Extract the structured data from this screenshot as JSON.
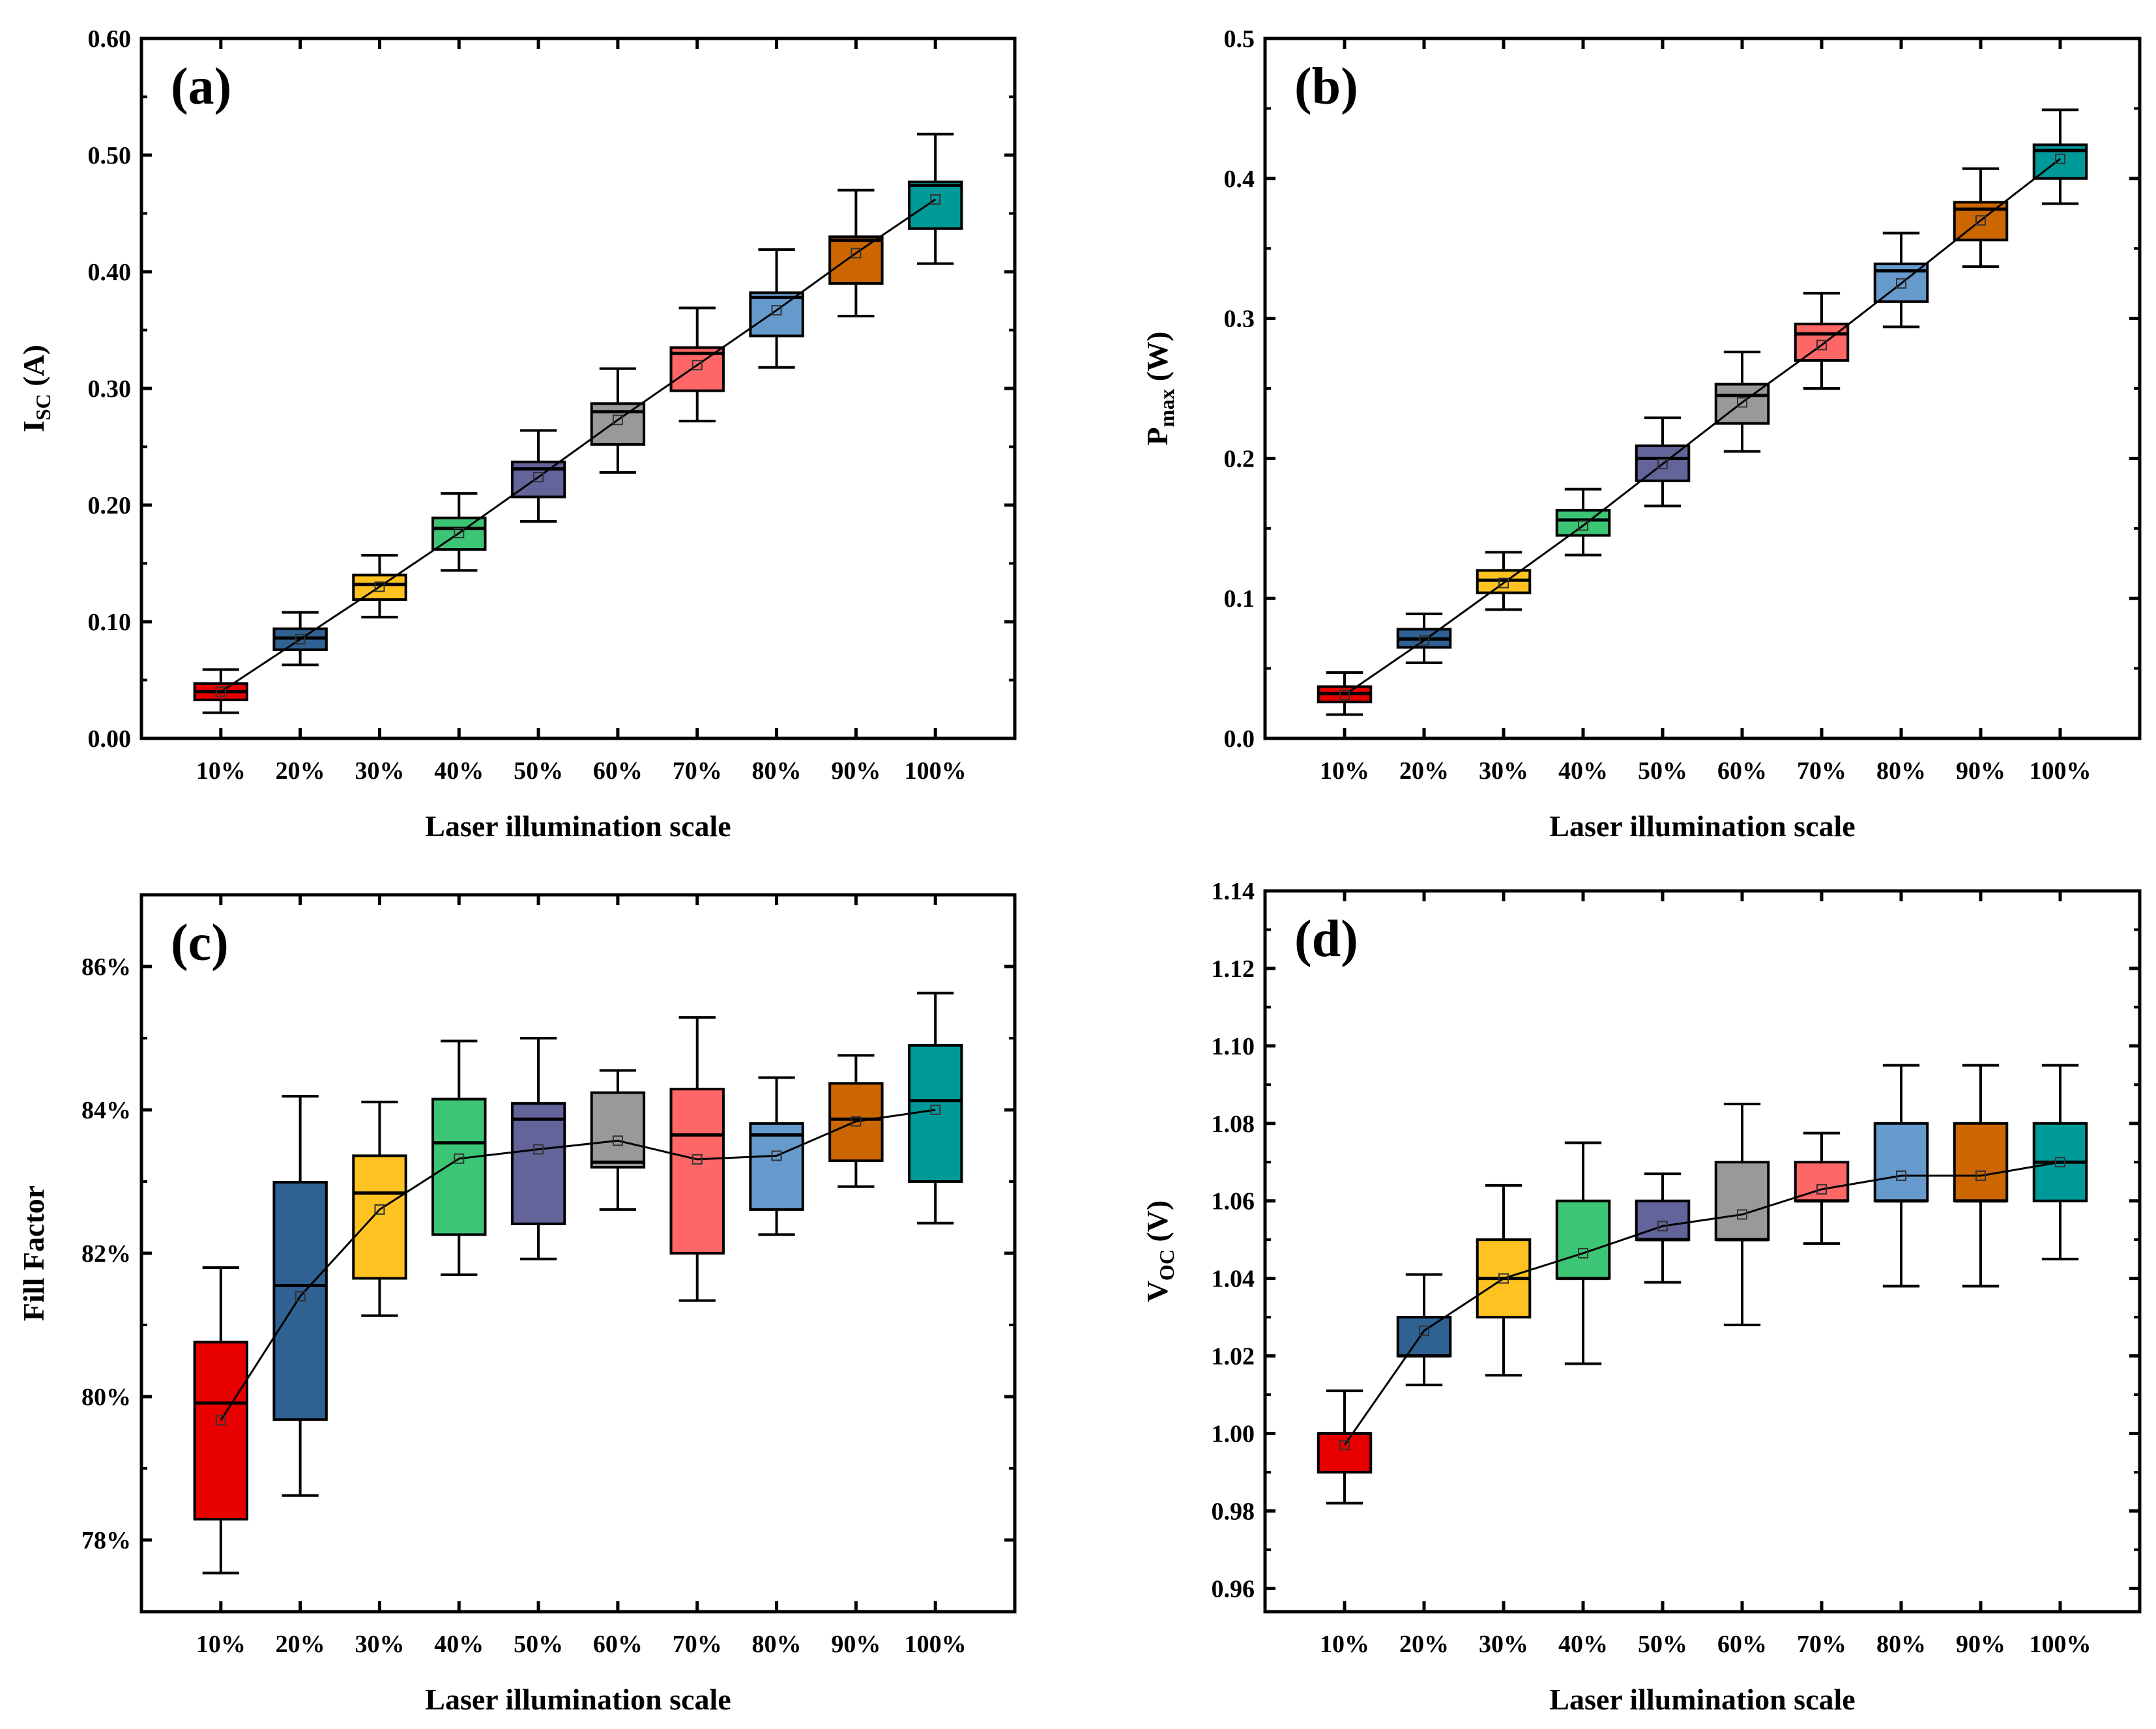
{
  "chart_data": [
    {
      "type": "box",
      "panel_label": "(a)",
      "ylabel": "I",
      "ylabel_sub": "SC",
      "ylabel_unit": " (A)",
      "xlabel": "Laser illumination scale",
      "categories": [
        "10%",
        "20%",
        "30%",
        "40%",
        "50%",
        "60%",
        "70%",
        "80%",
        "90%",
        "100%"
      ],
      "ylim": [
        0,
        0.6
      ],
      "yticks": [
        0,
        0.1,
        0.2,
        0.3,
        0.4,
        0.5,
        0.6
      ],
      "ytick_labels": [
        "0.00",
        "0.10",
        "0.20",
        "0.30",
        "0.40",
        "0.50",
        "0.60"
      ],
      "boxes": [
        {
          "min": 0.022,
          "q1": 0.033,
          "median": 0.04,
          "q3": 0.047,
          "max": 0.059,
          "mean": 0.04
        },
        {
          "min": 0.063,
          "q1": 0.076,
          "median": 0.086,
          "q3": 0.094,
          "max": 0.108,
          "mean": 0.085
        },
        {
          "min": 0.104,
          "q1": 0.119,
          "median": 0.132,
          "q3": 0.14,
          "max": 0.157,
          "mean": 0.13
        },
        {
          "min": 0.144,
          "q1": 0.162,
          "median": 0.18,
          "q3": 0.189,
          "max": 0.21,
          "mean": 0.176
        },
        {
          "min": 0.186,
          "q1": 0.207,
          "median": 0.231,
          "q3": 0.237,
          "max": 0.264,
          "mean": 0.224
        },
        {
          "min": 0.228,
          "q1": 0.252,
          "median": 0.28,
          "q3": 0.287,
          "max": 0.317,
          "mean": 0.273
        },
        {
          "min": 0.272,
          "q1": 0.298,
          "median": 0.33,
          "q3": 0.335,
          "max": 0.369,
          "mean": 0.32
        },
        {
          "min": 0.318,
          "q1": 0.345,
          "median": 0.378,
          "q3": 0.382,
          "max": 0.419,
          "mean": 0.367
        },
        {
          "min": 0.362,
          "q1": 0.39,
          "median": 0.427,
          "q3": 0.43,
          "max": 0.47,
          "mean": 0.416
        },
        {
          "min": 0.407,
          "q1": 0.437,
          "median": 0.474,
          "q3": 0.477,
          "max": 0.518,
          "mean": 0.462
        }
      ]
    },
    {
      "type": "box",
      "panel_label": "(b)",
      "ylabel": "P",
      "ylabel_sub": "max",
      "ylabel_unit": " (W)",
      "xlabel": "Laser illumination scale",
      "categories": [
        "10%",
        "20%",
        "30%",
        "40%",
        "50%",
        "60%",
        "70%",
        "80%",
        "90%",
        "100%"
      ],
      "ylim": [
        0,
        0.5
      ],
      "yticks": [
        0,
        0.1,
        0.2,
        0.3,
        0.4,
        0.5
      ],
      "ytick_labels": [
        "0.0",
        "0.1",
        "0.2",
        "0.3",
        "0.4",
        "0.5"
      ],
      "boxes": [
        {
          "min": 0.017,
          "q1": 0.026,
          "median": 0.032,
          "q3": 0.037,
          "max": 0.047,
          "mean": 0.031
        },
        {
          "min": 0.054,
          "q1": 0.065,
          "median": 0.071,
          "q3": 0.078,
          "max": 0.089,
          "mean": 0.07
        },
        {
          "min": 0.092,
          "q1": 0.104,
          "median": 0.113,
          "q3": 0.12,
          "max": 0.133,
          "mean": 0.111
        },
        {
          "min": 0.131,
          "q1": 0.145,
          "median": 0.156,
          "q3": 0.163,
          "max": 0.178,
          "mean": 0.152
        },
        {
          "min": 0.166,
          "q1": 0.184,
          "median": 0.2,
          "q3": 0.209,
          "max": 0.229,
          "mean": 0.196
        },
        {
          "min": 0.205,
          "q1": 0.225,
          "median": 0.245,
          "q3": 0.253,
          "max": 0.276,
          "mean": 0.24
        },
        {
          "min": 0.25,
          "q1": 0.27,
          "median": 0.289,
          "q3": 0.296,
          "max": 0.318,
          "mean": 0.281
        },
        {
          "min": 0.294,
          "q1": 0.312,
          "median": 0.334,
          "q3": 0.339,
          "max": 0.361,
          "mean": 0.325
        },
        {
          "min": 0.337,
          "q1": 0.356,
          "median": 0.378,
          "q3": 0.383,
          "max": 0.407,
          "mean": 0.37
        },
        {
          "min": 0.382,
          "q1": 0.4,
          "median": 0.42,
          "q3": 0.424,
          "max": 0.449,
          "mean": 0.414
        }
      ]
    },
    {
      "type": "box",
      "panel_label": "(c)",
      "ylabel": "Fill Factor",
      "ylabel_sub": "",
      "ylabel_unit": "",
      "xlabel": "Laser illumination scale",
      "categories": [
        "10%",
        "20%",
        "30%",
        "40%",
        "50%",
        "60%",
        "70%",
        "80%",
        "90%",
        "100%"
      ],
      "ylim": [
        77,
        87
      ],
      "yticks": [
        78,
        80,
        82,
        84,
        86
      ],
      "ytick_labels": [
        "78%",
        "80%",
        "82%",
        "84%",
        "86%"
      ],
      "boxes": [
        {
          "min": 77.54,
          "q1": 78.29,
          "median": 79.91,
          "q3": 80.76,
          "max": 81.8,
          "mean": 79.67
        },
        {
          "min": 78.62,
          "q1": 79.68,
          "median": 81.55,
          "q3": 82.99,
          "max": 84.19,
          "mean": 81.4
        },
        {
          "min": 81.13,
          "q1": 81.65,
          "median": 82.84,
          "q3": 83.36,
          "max": 84.11,
          "mean": 82.61
        },
        {
          "min": 81.7,
          "q1": 82.26,
          "median": 83.54,
          "q3": 84.15,
          "max": 84.96,
          "mean": 83.32
        },
        {
          "min": 81.92,
          "q1": 82.41,
          "median": 83.87,
          "q3": 84.09,
          "max": 85.0,
          "mean": 83.45
        },
        {
          "min": 82.61,
          "q1": 83.2,
          "median": 83.27,
          "q3": 84.24,
          "max": 84.55,
          "mean": 83.57
        },
        {
          "min": 81.34,
          "q1": 82.0,
          "median": 83.65,
          "q3": 84.29,
          "max": 85.29,
          "mean": 83.31
        },
        {
          "min": 82.26,
          "q1": 82.61,
          "median": 83.65,
          "q3": 83.81,
          "max": 84.45,
          "mean": 83.36
        },
        {
          "min": 82.93,
          "q1": 83.29,
          "median": 83.87,
          "q3": 84.37,
          "max": 84.76,
          "mean": 83.84
        },
        {
          "min": 82.42,
          "q1": 83.0,
          "median": 84.13,
          "q3": 84.9,
          "max": 85.63,
          "mean": 84.0
        }
      ]
    },
    {
      "type": "box",
      "panel_label": "(d)",
      "ylabel": "V",
      "ylabel_sub": "OC",
      "ylabel_unit": " (V)",
      "xlabel": "Laser illumination scale",
      "categories": [
        "10%",
        "20%",
        "30%",
        "40%",
        "50%",
        "60%",
        "70%",
        "80%",
        "90%",
        "100%"
      ],
      "ylim": [
        0.954,
        1.14
      ],
      "yticks": [
        0.96,
        0.98,
        1.0,
        1.02,
        1.04,
        1.06,
        1.08,
        1.1,
        1.12,
        1.14
      ],
      "ytick_labels": [
        "0.96",
        "0.98",
        "1.00",
        "1.02",
        "1.04",
        "1.06",
        "1.08",
        "1.10",
        "1.12",
        "1.14"
      ],
      "boxes": [
        {
          "min": 0.982,
          "q1": 0.99,
          "median": 1.0,
          "q3": 1.0,
          "max": 1.011,
          "mean": 0.997
        },
        {
          "min": 1.0125,
          "q1": 1.02,
          "median": 1.02,
          "q3": 1.03,
          "max": 1.041,
          "mean": 1.0265
        },
        {
          "min": 1.015,
          "q1": 1.03,
          "median": 1.04,
          "q3": 1.05,
          "max": 1.064,
          "mean": 1.04
        },
        {
          "min": 1.018,
          "q1": 1.04,
          "median": 1.04,
          "q3": 1.06,
          "max": 1.075,
          "mean": 1.0465
        },
        {
          "min": 1.039,
          "q1": 1.05,
          "median": 1.05,
          "q3": 1.06,
          "max": 1.067,
          "mean": 1.0535
        },
        {
          "min": 1.028,
          "q1": 1.05,
          "median": 1.05,
          "q3": 1.07,
          "max": 1.085,
          "mean": 1.0565
        },
        {
          "min": 1.049,
          "q1": 1.06,
          "median": 1.06,
          "q3": 1.07,
          "max": 1.0775,
          "mean": 1.063
        },
        {
          "min": 1.038,
          "q1": 1.06,
          "median": 1.06,
          "q3": 1.08,
          "max": 1.095,
          "mean": 1.0665
        },
        {
          "min": 1.038,
          "q1": 1.06,
          "median": 1.06,
          "q3": 1.08,
          "max": 1.095,
          "mean": 1.0665
        },
        {
          "min": 1.045,
          "q1": 1.06,
          "median": 1.07,
          "q3": 1.08,
          "max": 1.095,
          "mean": 1.07
        }
      ]
    }
  ],
  "colors": [
    "#e80000",
    "#2f6193",
    "#fec320",
    "#3cc574",
    "#62649a",
    "#999999",
    "#ff6666",
    "#6699cc",
    "#cc6600",
    "#009999"
  ]
}
